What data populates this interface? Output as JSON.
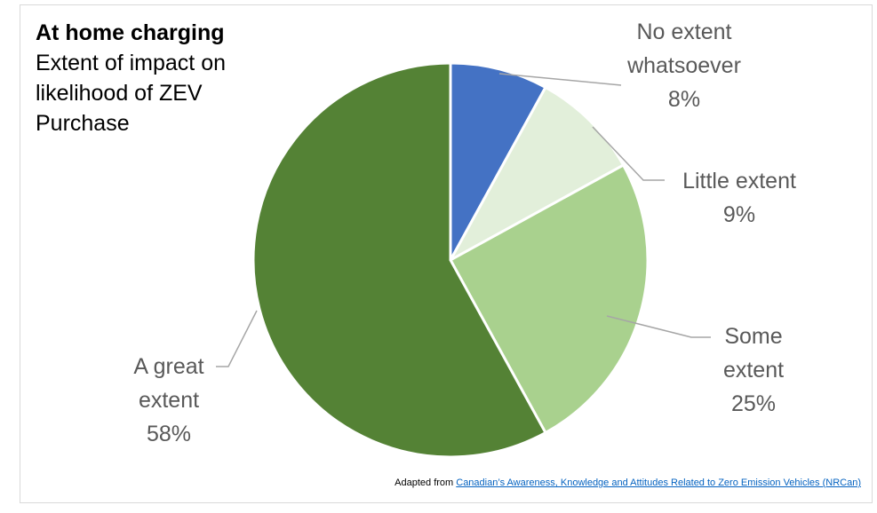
{
  "chart_data": {
    "type": "pie",
    "title": "At home charging",
    "subtitle": "Extent of impact on likelihood of ZEV Purchase",
    "slices": [
      {
        "label_lines": [
          "No extent",
          "whatsoever"
        ],
        "value": 8,
        "display": "8%",
        "color": "#4472c4"
      },
      {
        "label_lines": [
          "Little extent"
        ],
        "value": 9,
        "display": "9%",
        "color": "#e2efda"
      },
      {
        "label_lines": [
          "Some",
          "extent"
        ],
        "value": 25,
        "display": "25%",
        "color": "#a9d18e"
      },
      {
        "label_lines": [
          "A great",
          "extent"
        ],
        "value": 58,
        "display": "58%",
        "color": "#548235"
      }
    ]
  },
  "source": {
    "prefix": "Adapted from ",
    "link_text": "Canadian’s Awareness, Knowledge and Attitudes Related to Zero Emission Vehicles (NRCan)"
  }
}
